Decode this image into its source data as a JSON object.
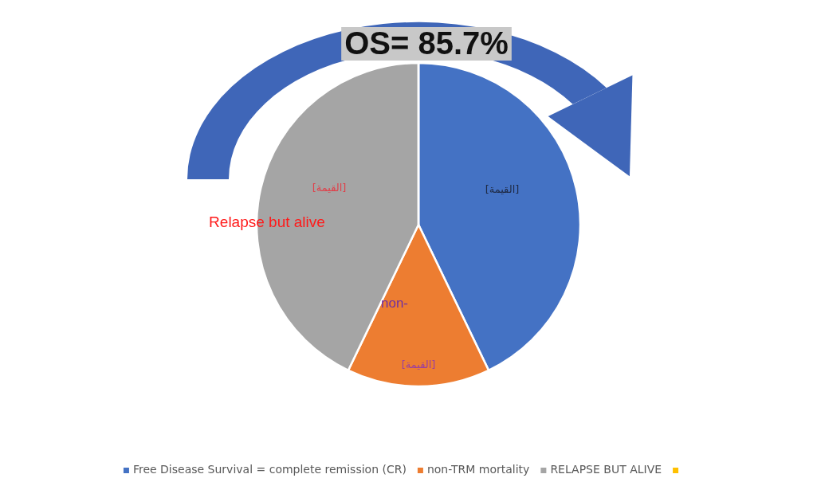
{
  "chart_data": {
    "type": "pie",
    "title": "OS= 85.7%",
    "categories": [
      "Free Disease Survival = complete remission (CR)",
      "non-TRM mortality",
      "RELAPSE BUT ALIVE",
      null
    ],
    "values": [
      42.9,
      14.3,
      42.9,
      0
    ],
    "colors": [
      "#4472c4",
      "#ed7d31",
      "#a5a5a5",
      "#ffc000"
    ],
    "value_labels": [
      "[القيمة]",
      "[القيمة]",
      "[القيمة]",
      null
    ],
    "annotations": [
      "Relapse but alive",
      "non-"
    ],
    "legend": "bottom"
  }
}
